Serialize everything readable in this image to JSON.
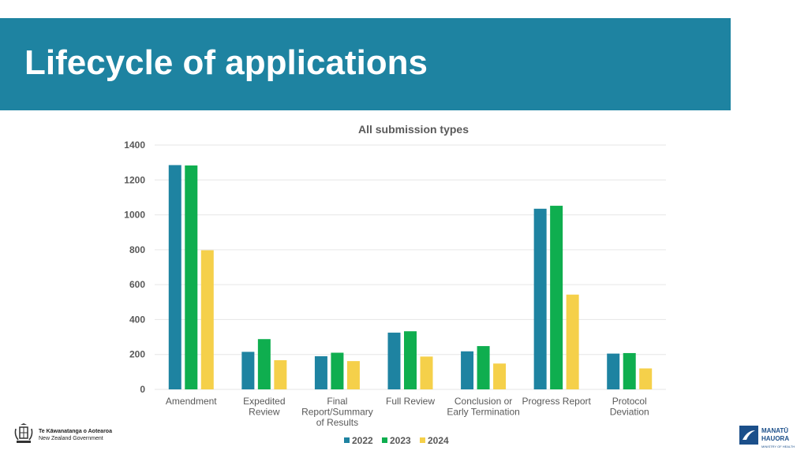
{
  "slide": {
    "title": "Lifecycle of applications"
  },
  "colors": {
    "banner": "#1e83a1",
    "series_2022": "#1e83a1",
    "series_2023": "#0fae4f",
    "series_2024": "#f5d04a"
  },
  "chart_data": {
    "type": "bar",
    "title": "All submission types",
    "xlabel": "",
    "ylabel": "",
    "ylim": [
      0,
      1400
    ],
    "yticks": [
      0,
      200,
      400,
      600,
      800,
      1000,
      1200,
      1400
    ],
    "grid": true,
    "legend_position": "bottom",
    "categories": [
      [
        "Amendment"
      ],
      [
        "Expedited",
        "Review"
      ],
      [
        "Final",
        "Report/Summary",
        "of Results"
      ],
      [
        "Full Review"
      ],
      [
        "Conclusion or",
        "Early Termination"
      ],
      [
        "Progress Report"
      ],
      [
        "Protocol",
        "Deviation"
      ]
    ],
    "series": [
      {
        "name": "2022",
        "color": "#1e83a1",
        "values": [
          1285,
          215,
          190,
          325,
          218,
          1035,
          205
        ]
      },
      {
        "name": "2023",
        "color": "#0fae4f",
        "values": [
          1283,
          288,
          210,
          333,
          248,
          1052,
          208
        ]
      },
      {
        "name": "2024",
        "color": "#f5d04a",
        "values": [
          797,
          167,
          162,
          188,
          148,
          543,
          120
        ]
      }
    ]
  },
  "footer": {
    "gov_line1": "Te Kāwanatanga o Aotearoa",
    "gov_line2": "New Zealand Government",
    "mh_line1": "MANATŪ",
    "mh_line2": "HAUORA",
    "mh_line3": "MINISTRY OF HEALTH"
  }
}
